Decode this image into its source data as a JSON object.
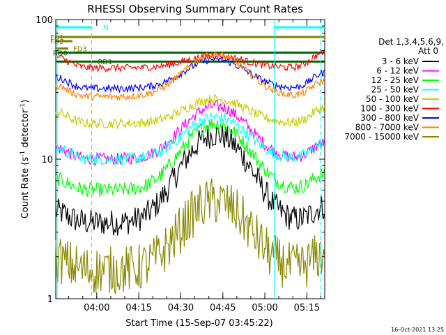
{
  "chart_data": {
    "type": "line",
    "title": "RHESSI Observing Summary Count Rates",
    "xlabel": "Start Time (15-Sep-07 03:45:22)",
    "ylabel": "Count Rate (s",
    "ylabel_sup": "-1",
    "ylabel_tail": " detector",
    "ylabel_sup2": "-1",
    "ylabel_end": ")",
    "yscale": "log",
    "ylim": [
      1,
      100
    ],
    "xlim_minutes": [
      0,
      96
    ],
    "y_ticks": [
      {
        "value": 1,
        "label": "1"
      },
      {
        "value": 10,
        "label": "10"
      },
      {
        "value": 100,
        "label": "100"
      }
    ],
    "x_ticks": [
      {
        "value": 14.63,
        "label": "04:00"
      },
      {
        "value": 29.63,
        "label": "04:15"
      },
      {
        "value": 44.63,
        "label": "04:30"
      },
      {
        "value": 59.63,
        "label": "04:45"
      },
      {
        "value": 74.63,
        "label": "05:00"
      },
      {
        "value": 89.63,
        "label": "05:15"
      }
    ],
    "legend_header": [
      "Det 1,3,4,5,6,9,",
      "Att 0"
    ],
    "series": [
      {
        "name": "3 - 6 keV",
        "color": "#000000",
        "base": 3.5,
        "peak": 15,
        "spread": 0.55
      },
      {
        "name": "6 - 12 keV",
        "color": "#ff00ff",
        "base": 10,
        "peak": 24,
        "spread": 0.25
      },
      {
        "name": "12 - 25 keV",
        "color": "#00ff00",
        "base": 6,
        "peak": 18,
        "spread": 0.3
      },
      {
        "name": "25 - 50 keV",
        "color": "#00ffff",
        "base": 10,
        "peak": 20,
        "spread": 0.25
      },
      {
        "name": "50 - 100 keV",
        "color": "#cccc00",
        "base": 18,
        "peak": 27,
        "spread": 0.2
      },
      {
        "name": "100 - 300 keV",
        "color": "#ff0000",
        "base": 45,
        "peak": 55,
        "spread": 0.15
      },
      {
        "name": "300 - 800 keV",
        "color": "#0000ff",
        "base": 32,
        "peak": 52,
        "spread": 0.15
      },
      {
        "name": "800 - 7000 keV",
        "color": "#ff8000",
        "base": 28,
        "peak": 56,
        "spread": 0.15
      },
      {
        "name": "7000 - 15000 keV",
        "color": "#888800",
        "base": 1.6,
        "peak": 5,
        "spread": 1.0
      }
    ],
    "flag_lines": [
      {
        "label": "FD1",
        "color": "#808000",
        "y": 75
      },
      {
        "label": "FD2",
        "color": "#808000",
        "y": 70
      },
      {
        "label": "FD3",
        "color": "#808000",
        "y": 62
      },
      {
        "label": "RD0",
        "color": "#006600",
        "y": 58
      },
      {
        "label": "RD1",
        "color": "#006600",
        "y": 50
      },
      {
        "label": "N",
        "color": "#00ffff",
        "y": 88
      }
    ],
    "event_lines_minutes": [
      0.5,
      12.8,
      78,
      94.5
    ],
    "footer_date": "16-Oct-2021 13:25"
  }
}
